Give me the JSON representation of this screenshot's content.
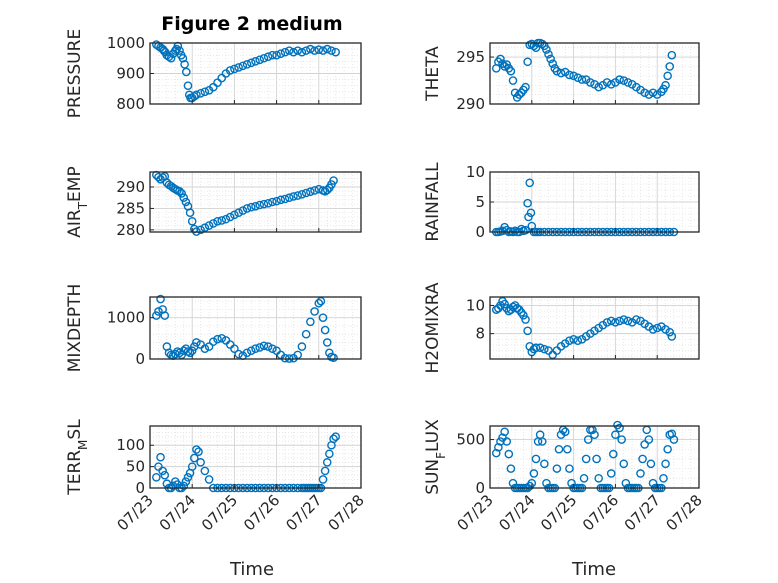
{
  "figure": {
    "title": "Figure 2 medium"
  },
  "x_axis": {
    "label": "Time",
    "tick_labels": [
      "07/23",
      "07/24",
      "07/25",
      "07/26",
      "07/27",
      "07/28"
    ]
  },
  "colors": {
    "marker": "#0072bd",
    "axis": "#262626"
  },
  "chart_data": [
    {
      "type": "scatter",
      "ylabel": "PRESSURE",
      "ylabel_sub": "",
      "xlim": [
        0,
        5
      ],
      "ylim": [
        800,
        1000
      ],
      "yticks": [
        800,
        900,
        1000
      ],
      "ytick_labels": [
        "800",
        "900",
        "1000"
      ],
      "x": [
        0.15,
        0.2,
        0.25,
        0.3,
        0.33,
        0.36,
        0.4,
        0.45,
        0.5,
        0.55,
        0.6,
        0.63,
        0.66,
        0.7,
        0.74,
        0.78,
        0.82,
        0.86,
        0.9,
        0.93,
        0.96,
        1.0,
        1.05,
        1.1,
        1.2,
        1.3,
        1.4,
        1.5,
        1.6,
        1.7,
        1.8,
        1.9,
        2.0,
        2.1,
        2.2,
        2.3,
        2.4,
        2.5,
        2.6,
        2.7,
        2.8,
        2.9,
        3.0,
        3.1,
        3.2,
        3.3,
        3.4,
        3.5,
        3.6,
        3.7,
        3.8,
        3.9,
        4.0,
        4.1,
        4.2,
        4.3,
        4.4
      ],
      "y": [
        995,
        990,
        985,
        980,
        975,
        970,
        960,
        955,
        950,
        965,
        975,
        980,
        990,
        975,
        960,
        950,
        930,
        905,
        860,
        830,
        820,
        820,
        825,
        830,
        835,
        840,
        845,
        855,
        870,
        885,
        900,
        910,
        915,
        920,
        925,
        930,
        935,
        940,
        945,
        950,
        955,
        960,
        960,
        965,
        970,
        975,
        970,
        975,
        970,
        975,
        980,
        975,
        978,
        975,
        980,
        975,
        970
      ]
    },
    {
      "type": "scatter",
      "ylabel": "THETA",
      "ylabel_sub": "",
      "xlim": [
        0,
        5
      ],
      "ylim": [
        290,
        296.5
      ],
      "yticks": [
        290,
        295
      ],
      "ytick_labels": [
        "290",
        "295"
      ],
      "x": [
        0.15,
        0.2,
        0.25,
        0.3,
        0.35,
        0.4,
        0.45,
        0.5,
        0.55,
        0.6,
        0.65,
        0.7,
        0.75,
        0.8,
        0.85,
        0.9,
        0.95,
        1.0,
        1.05,
        1.1,
        1.15,
        1.2,
        1.25,
        1.3,
        1.35,
        1.4,
        1.45,
        1.5,
        1.55,
        1.6,
        1.7,
        1.8,
        1.9,
        2.0,
        2.1,
        2.2,
        2.3,
        2.4,
        2.5,
        2.6,
        2.7,
        2.8,
        2.9,
        3.0,
        3.1,
        3.2,
        3.3,
        3.4,
        3.5,
        3.6,
        3.7,
        3.8,
        3.9,
        4.0,
        4.1,
        4.15,
        4.2,
        4.25,
        4.3,
        4.35
      ],
      "y": [
        293.8,
        294.5,
        294.8,
        294.3,
        294,
        294.2,
        293.8,
        293.5,
        292.5,
        291.2,
        290.7,
        291,
        291.2,
        291.5,
        291.8,
        294.5,
        296.3,
        296.4,
        296.2,
        296,
        296.5,
        296.5,
        296.4,
        296.2,
        295.8,
        295.3,
        294.8,
        294.3,
        293.8,
        293.5,
        293.3,
        293.4,
        293.1,
        293,
        292.8,
        292.6,
        292.6,
        292.3,
        292.1,
        291.8,
        292,
        292.3,
        292.1,
        292.3,
        292.6,
        292.5,
        292.3,
        292.1,
        291.8,
        291.5,
        291.2,
        291,
        291.2,
        291,
        291.3,
        291.6,
        292,
        293,
        294,
        295.2
      ]
    },
    {
      "type": "scatter",
      "ylabel": "AIR",
      "ylabel_sub": "T",
      "ylabel_tail": "EMP",
      "xlim": [
        0,
        5
      ],
      "ylim": [
        279.5,
        293.5
      ],
      "yticks": [
        280,
        285,
        290
      ],
      "ytick_labels": [
        "280",
        "285",
        "290"
      ],
      "x": [
        0.15,
        0.2,
        0.25,
        0.3,
        0.35,
        0.4,
        0.45,
        0.5,
        0.55,
        0.6,
        0.65,
        0.7,
        0.75,
        0.8,
        0.85,
        0.9,
        0.95,
        1.0,
        1.05,
        1.1,
        1.2,
        1.3,
        1.4,
        1.5,
        1.6,
        1.7,
        1.8,
        1.9,
        2.0,
        2.1,
        2.2,
        2.3,
        2.4,
        2.5,
        2.6,
        2.7,
        2.8,
        2.9,
        3.0,
        3.1,
        3.2,
        3.3,
        3.4,
        3.5,
        3.6,
        3.7,
        3.8,
        3.9,
        4.0,
        4.1,
        4.15,
        4.2,
        4.25,
        4.3,
        4.35
      ],
      "y": [
        292.8,
        292.3,
        291.8,
        292.2,
        292.5,
        291,
        290.5,
        290.2,
        289.8,
        289.5,
        289.2,
        289,
        288.5,
        287.5,
        286.5,
        285.5,
        284,
        282,
        280.2,
        279.6,
        280,
        280.5,
        281,
        281.5,
        282,
        282.2,
        282.5,
        283,
        283.5,
        284,
        284.5,
        285,
        285.3,
        285.5,
        285.8,
        286,
        286.2,
        286.5,
        286.7,
        287,
        287.2,
        287.5,
        287.8,
        288,
        288.3,
        288.6,
        288.9,
        289.2,
        289.5,
        289.2,
        289,
        289.3,
        289.8,
        290.6,
        291.5
      ]
    },
    {
      "type": "scatter",
      "ylabel": "RAINFALL",
      "ylabel_sub": "",
      "xlim": [
        0,
        5
      ],
      "ylim": [
        0,
        10
      ],
      "yticks": [
        0,
        5,
        10
      ],
      "ytick_labels": [
        "0",
        "5",
        "10"
      ],
      "x": [
        0.15,
        0.2,
        0.25,
        0.3,
        0.35,
        0.4,
        0.45,
        0.5,
        0.55,
        0.6,
        0.65,
        0.7,
        0.75,
        0.8,
        0.85,
        0.9,
        0.92,
        0.95,
        0.98,
        1.0,
        1.05,
        1.1,
        1.15,
        1.2,
        1.3,
        1.4,
        1.5,
        1.6,
        1.7,
        1.8,
        1.9,
        2.0,
        2.1,
        2.2,
        2.3,
        2.4,
        2.5,
        2.6,
        2.7,
        2.8,
        2.9,
        3.0,
        3.1,
        3.2,
        3.3,
        3.4,
        3.5,
        3.6,
        3.7,
        3.8,
        3.9,
        4.0,
        4.1,
        4.2,
        4.3,
        4.4
      ],
      "y": [
        0,
        0,
        0.1,
        0.2,
        0.8,
        0.3,
        0,
        0.1,
        0,
        0.2,
        0,
        0,
        0.5,
        0.2,
        0.3,
        4.8,
        2.5,
        8.2,
        3.2,
        1,
        0,
        0,
        0,
        0,
        0,
        0,
        0,
        0,
        0,
        0,
        0,
        0,
        0,
        0,
        0,
        0,
        0,
        0,
        0,
        0,
        0,
        0,
        0,
        0,
        0,
        0,
        0,
        0,
        0,
        0,
        0,
        0,
        0,
        0,
        0,
        0
      ]
    },
    {
      "type": "scatter",
      "ylabel": "MIXDEPTH",
      "ylabel_sub": "",
      "xlim": [
        0,
        5
      ],
      "ylim": [
        0,
        1500
      ],
      "yticks": [
        0,
        1000
      ],
      "ytick_labels": [
        "0",
        "1000"
      ],
      "x": [
        0.15,
        0.2,
        0.25,
        0.3,
        0.35,
        0.4,
        0.45,
        0.5,
        0.55,
        0.6,
        0.65,
        0.7,
        0.75,
        0.8,
        0.85,
        0.9,
        0.95,
        1.0,
        1.05,
        1.1,
        1.2,
        1.3,
        1.4,
        1.5,
        1.6,
        1.7,
        1.8,
        1.9,
        2.0,
        2.1,
        2.2,
        2.3,
        2.4,
        2.5,
        2.6,
        2.7,
        2.8,
        2.9,
        3.0,
        3.1,
        3.2,
        3.3,
        3.4,
        3.5,
        3.6,
        3.7,
        3.8,
        3.9,
        4.0,
        4.05,
        4.1,
        4.15,
        4.2,
        4.25,
        4.3,
        4.35
      ],
      "y": [
        1050,
        1150,
        1450,
        1200,
        1050,
        300,
        150,
        100,
        80,
        120,
        180,
        150,
        100,
        200,
        250,
        180,
        150,
        200,
        300,
        400,
        350,
        250,
        300,
        420,
        480,
        500,
        450,
        350,
        250,
        120,
        80,
        150,
        200,
        250,
        280,
        320,
        300,
        250,
        200,
        100,
        20,
        10,
        20,
        100,
        300,
        600,
        900,
        1150,
        1350,
        1400,
        1000,
        700,
        400,
        150,
        50,
        30
      ]
    },
    {
      "type": "scatter",
      "ylabel": "H2OMIXRA",
      "ylabel_sub": "",
      "xlim": [
        0,
        5
      ],
      "ylim": [
        6.2,
        10.6
      ],
      "yticks": [
        8,
        10
      ],
      "ytick_labels": [
        "8",
        "10"
      ],
      "x": [
        0.15,
        0.2,
        0.25,
        0.3,
        0.35,
        0.4,
        0.45,
        0.5,
        0.55,
        0.6,
        0.65,
        0.7,
        0.75,
        0.8,
        0.85,
        0.9,
        0.95,
        1.0,
        1.05,
        1.1,
        1.2,
        1.3,
        1.4,
        1.5,
        1.6,
        1.7,
        1.8,
        1.9,
        2.0,
        2.1,
        2.2,
        2.3,
        2.4,
        2.5,
        2.6,
        2.7,
        2.8,
        2.9,
        3.0,
        3.1,
        3.2,
        3.3,
        3.4,
        3.5,
        3.6,
        3.7,
        3.8,
        3.9,
        4.0,
        4.1,
        4.2,
        4.3,
        4.35
      ],
      "y": [
        9.7,
        9.8,
        10,
        10.3,
        10.1,
        9.8,
        9.6,
        9.7,
        9.9,
        10,
        9.8,
        9.7,
        9.5,
        9.3,
        9,
        8.2,
        7.1,
        6.7,
        6.9,
        7,
        7,
        6.9,
        6.8,
        6.5,
        6.8,
        7.1,
        7.3,
        7.5,
        7.6,
        7.5,
        7.6,
        7.8,
        8,
        8.2,
        8.4,
        8.6,
        8.8,
        8.9,
        8.8,
        8.9,
        9,
        8.9,
        8.8,
        9,
        8.9,
        8.7,
        8.5,
        8.3,
        8.4,
        8.5,
        8.3,
        8.1,
        7.8
      ]
    },
    {
      "type": "scatter",
      "ylabel": "TERR",
      "ylabel_sub": "M",
      "ylabel_tail": "SL",
      "xlim": [
        0,
        5
      ],
      "ylim": [
        0,
        145
      ],
      "yticks": [
        0,
        50,
        100
      ],
      "ytick_labels": [
        "0",
        "50",
        "100"
      ],
      "x": [
        0.15,
        0.2,
        0.25,
        0.3,
        0.35,
        0.4,
        0.45,
        0.5,
        0.55,
        0.6,
        0.65,
        0.7,
        0.75,
        0.8,
        0.85,
        0.9,
        0.95,
        1.0,
        1.05,
        1.1,
        1.15,
        1.2,
        1.3,
        1.4,
        1.5,
        1.6,
        1.7,
        1.8,
        1.9,
        2.0,
        2.1,
        2.2,
        2.3,
        2.4,
        2.5,
        2.6,
        2.7,
        2.8,
        2.9,
        3.0,
        3.1,
        3.2,
        3.3,
        3.4,
        3.5,
        3.6,
        3.65,
        3.7,
        3.75,
        3.8,
        3.85,
        3.9,
        3.95,
        4.0,
        4.05,
        4.1,
        4.15,
        4.2,
        4.25,
        4.3,
        4.35,
        4.4
      ],
      "y": [
        25,
        50,
        72,
        40,
        30,
        10,
        0,
        0,
        5,
        15,
        8,
        0,
        0,
        5,
        15,
        25,
        35,
        50,
        70,
        90,
        85,
        60,
        40,
        20,
        0,
        0,
        0,
        0,
        0,
        0,
        0,
        0,
        0,
        0,
        0,
        0,
        0,
        0,
        0,
        0,
        0,
        0,
        0,
        0,
        0,
        0,
        0,
        0,
        0,
        0,
        0,
        0,
        0,
        0,
        0,
        20,
        40,
        60,
        80,
        100,
        115,
        120
      ]
    },
    {
      "type": "scatter",
      "ylabel": "SUN",
      "ylabel_sub": "F",
      "ylabel_tail": "LUX",
      "xlim": [
        0,
        5
      ],
      "ylim": [
        0,
        640
      ],
      "yticks": [
        0,
        500
      ],
      "ytick_labels": [
        "0",
        "500"
      ],
      "x": [
        0.15,
        0.2,
        0.25,
        0.3,
        0.35,
        0.4,
        0.45,
        0.5,
        0.55,
        0.6,
        0.65,
        0.7,
        0.75,
        0.8,
        0.85,
        0.9,
        0.95,
        1.0,
        1.05,
        1.1,
        1.15,
        1.2,
        1.25,
        1.3,
        1.35,
        1.4,
        1.45,
        1.5,
        1.55,
        1.6,
        1.65,
        1.7,
        1.75,
        1.8,
        1.85,
        1.9,
        1.95,
        2.0,
        2.05,
        2.1,
        2.15,
        2.2,
        2.25,
        2.3,
        2.35,
        2.4,
        2.45,
        2.5,
        2.55,
        2.6,
        2.65,
        2.7,
        2.75,
        2.8,
        2.85,
        2.9,
        2.95,
        3.0,
        3.05,
        3.1,
        3.15,
        3.2,
        3.25,
        3.3,
        3.35,
        3.4,
        3.45,
        3.5,
        3.55,
        3.6,
        3.65,
        3.7,
        3.75,
        3.8,
        3.85,
        3.9,
        3.95,
        4.0,
        4.05,
        4.1,
        4.15,
        4.2,
        4.25,
        4.3,
        4.35,
        4.4
      ],
      "y": [
        360,
        420,
        480,
        520,
        580,
        480,
        350,
        200,
        50,
        0,
        0,
        0,
        0,
        0,
        0,
        0,
        20,
        50,
        150,
        300,
        480,
        550,
        480,
        250,
        50,
        0,
        0,
        0,
        0,
        200,
        400,
        550,
        600,
        580,
        400,
        200,
        50,
        0,
        0,
        0,
        0,
        0,
        100,
        300,
        500,
        600,
        600,
        550,
        300,
        100,
        0,
        0,
        0,
        0,
        0,
        150,
        350,
        550,
        650,
        620,
        500,
        250,
        50,
        0,
        0,
        0,
        0,
        0,
        0,
        150,
        300,
        450,
        600,
        500,
        250,
        50,
        0,
        0,
        0,
        0,
        100,
        250,
        400,
        550,
        560,
        500
      ]
    }
  ]
}
